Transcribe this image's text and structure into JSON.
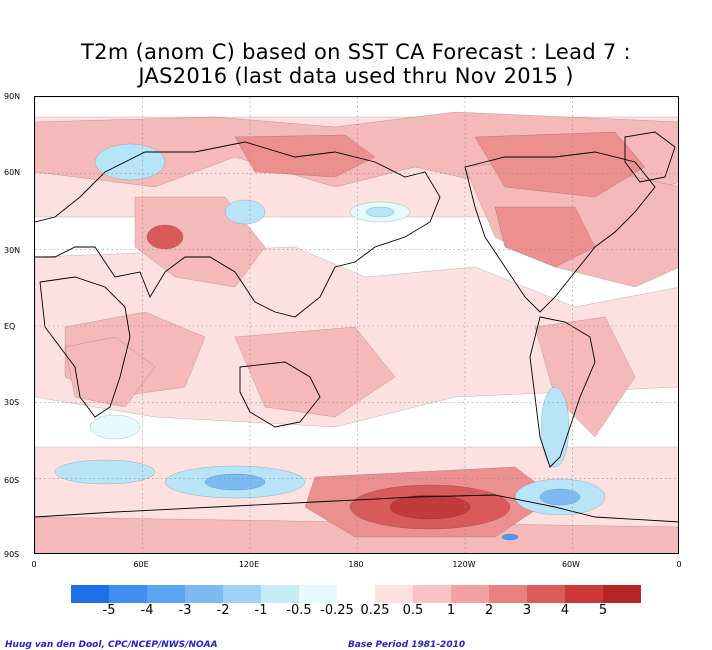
{
  "title": {
    "line1": "T2m (anom C) based on SST CA Forecast : Lead 7 :",
    "line2": "JAS2016 (last data used thru Nov 2015 )"
  },
  "axes": {
    "lat_labels": [
      "90N",
      "60N",
      "30N",
      "EQ",
      "30S",
      "60S",
      "90S"
    ],
    "lon_labels": [
      "0",
      "60E",
      "120E",
      "180",
      "120W",
      "60W",
      "0"
    ]
  },
  "colorbar": {
    "labels": [
      "-5",
      "-4",
      "-3",
      "-2",
      "-1",
      "-0.5",
      "-0.25",
      "0.25",
      "0.5",
      "1",
      "2",
      "3",
      "4",
      "5"
    ],
    "colors": [
      "#1f6fe8",
      "#3f8ef0",
      "#5aa5f2",
      "#7cbaf4",
      "#a0d2f6",
      "#c6ecf8",
      "#e4fafc",
      "#ffffff",
      "#fde0e0",
      "#f9c3c3",
      "#f2a2a2",
      "#e98080",
      "#dc5a5a",
      "#cc3838",
      "#b42525"
    ]
  },
  "map": {
    "anomaly_colors": {
      "near_zero": "#ffffff",
      "warm_weak": "#fde0e0",
      "warm_mid": "#f6b9b9",
      "warm_strong": "#ec8f8f",
      "warm_very_strong": "#d85a5a",
      "warm_max": "#c23a3a",
      "cool_weak": "#e4fafc",
      "cool_mid": "#b7e4f7",
      "cool_strong": "#7cbaf4",
      "cool_max": "#4a98ee"
    },
    "coastline_color": "#000000",
    "grid": "dotted"
  },
  "footer": {
    "credit": "Huug van den Dool, CPC/NCEP/NWS/NOAA",
    "base_period": "Base Period 1981-2010"
  }
}
